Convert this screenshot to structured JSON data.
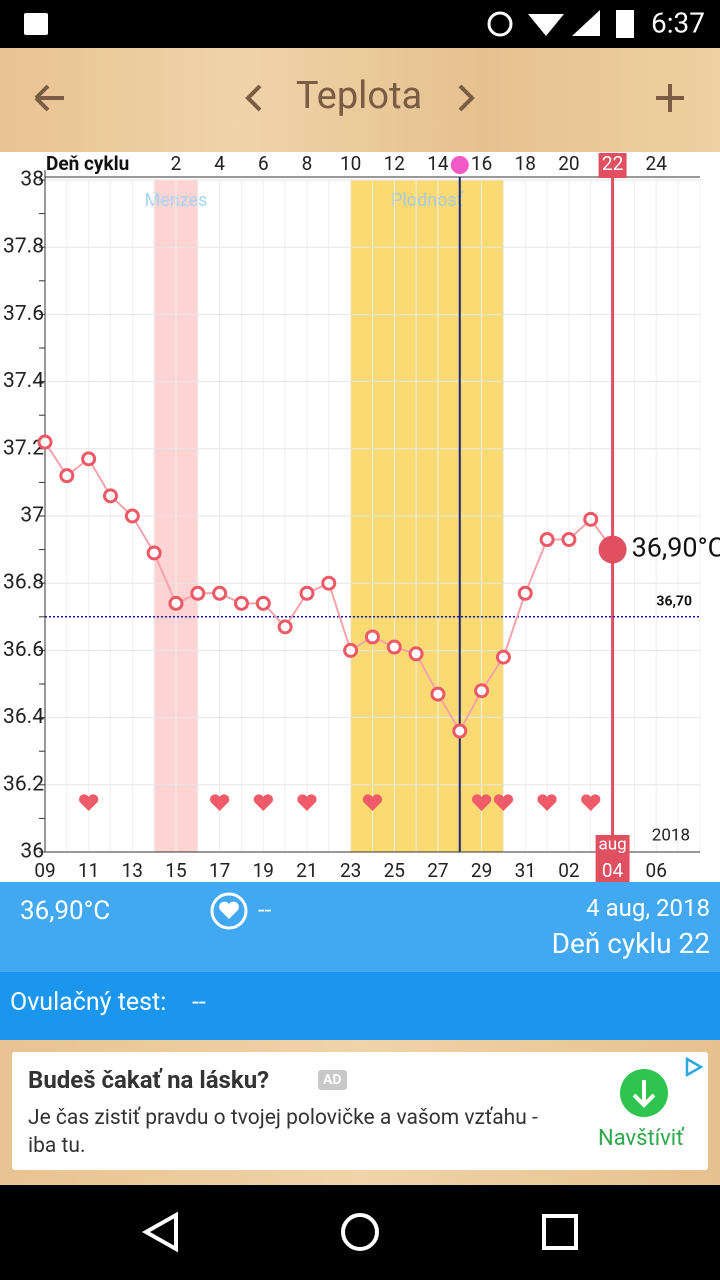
{
  "status_bar": {
    "time": "6:37"
  },
  "header": {
    "title": "Teplota"
  },
  "chart_data": {
    "type": "line",
    "categories": [
      "09",
      null,
      "11",
      null,
      "13",
      null,
      "15",
      null,
      "17",
      null,
      "19",
      null,
      "21",
      null,
      "23",
      null,
      "25",
      null,
      "27",
      null,
      "29",
      null,
      "31",
      null,
      "02",
      null,
      "04",
      null,
      "06",
      null
    ],
    "top_axis": {
      "title": "Deň cyklu",
      "labels": [
        null,
        null,
        null,
        null,
        null,
        null,
        "2",
        null,
        "4",
        null,
        "6",
        null,
        "8",
        null,
        "10",
        null,
        "12",
        null,
        "14",
        null,
        "16",
        null,
        "18",
        null,
        "20",
        null,
        "22",
        null,
        "24",
        null
      ]
    },
    "values": [
      37.22,
      37.12,
      37.17,
      37.06,
      37.0,
      36.89,
      36.74,
      36.77,
      36.77,
      36.74,
      36.74,
      36.67,
      36.77,
      36.8,
      36.6,
      36.64,
      36.61,
      36.59,
      36.47,
      36.36,
      36.48,
      36.58,
      36.77,
      36.93,
      36.93,
      36.99,
      36.9,
      null,
      null,
      null
    ],
    "value_labels": [
      null,
      null,
      null,
      null,
      null,
      null,
      null,
      null,
      null,
      null,
      null,
      null,
      null,
      null,
      null,
      null,
      null,
      null,
      null,
      null,
      null,
      null,
      null,
      null,
      null,
      null,
      "36,90°C",
      null,
      null,
      null
    ],
    "color": "#ec5a67",
    "hearts": [
      false,
      false,
      true,
      false,
      false,
      false,
      false,
      false,
      true,
      false,
      true,
      false,
      true,
      false,
      false,
      true,
      false,
      false,
      false,
      false,
      true,
      true,
      false,
      true,
      false,
      true,
      false,
      false,
      false,
      false
    ],
    "ylim": [
      36,
      38
    ],
    "yticks": [
      36,
      36.2,
      36.4,
      36.6,
      36.8,
      37,
      37.2,
      37.4,
      37.6,
      37.8,
      38
    ],
    "grid": true,
    "bands": [
      {
        "label": "Menzes",
        "from": 5,
        "to": 7,
        "color": "#fdd3d3"
      },
      {
        "label": "Plodnosť",
        "from": 14,
        "to": 21,
        "color": "#fadb73"
      }
    ],
    "ovulation_index": 19,
    "coverline": {
      "value": 36.7,
      "label": "36,70"
    },
    "selected_index": 26,
    "month_label": "aug",
    "year": "2018"
  },
  "info": {
    "temperature": "36,90°C",
    "intercourse": "--",
    "date": "4 aug, 2018",
    "cycle_day": "Deň cyklu 22"
  },
  "ovulation_test": {
    "label": "Ovulačný test:",
    "value": "--"
  },
  "ad": {
    "title": "Budeš čakať na lásku?",
    "badge": "AD",
    "body": "Je čas zistiť pravdu o tvojej polovičke a vašom vzťahu - iba tu.",
    "button": "Navštíviť"
  }
}
